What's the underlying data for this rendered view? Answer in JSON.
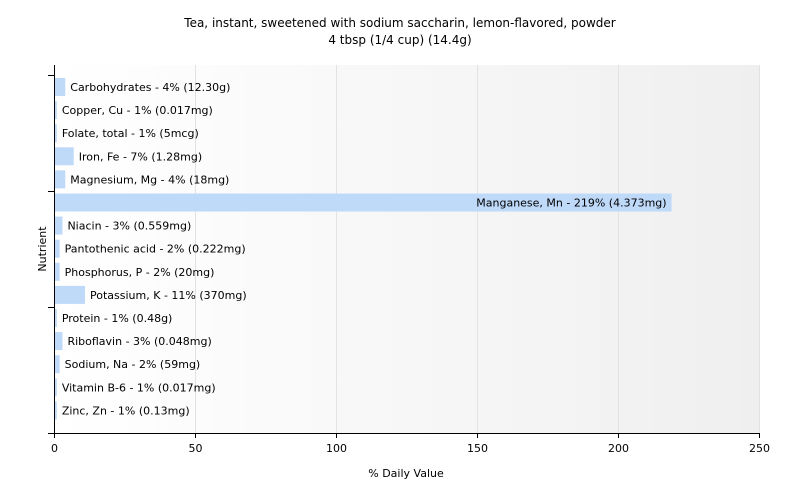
{
  "chart_data": {
    "type": "bar",
    "orientation": "horizontal",
    "title": "Tea, instant, sweetened with sodium saccharin, lemon-flavored, powder",
    "subtitle": "4 tbsp (1/4 cup) (14.4g)",
    "xlabel": "% Daily Value",
    "ylabel": "Nutrient",
    "xlim": [
      0,
      250
    ],
    "xticks": [
      0,
      50,
      100,
      150,
      200,
      250
    ],
    "grid": true,
    "bar_color": "#bfd9f9",
    "categories": [
      "Carbohydrates",
      "Copper, Cu",
      "Folate, total",
      "Iron, Fe",
      "Magnesium, Mg",
      "Manganese, Mn",
      "Niacin",
      "Pantothenic acid",
      "Phosphorus, P",
      "Potassium, K",
      "Protein",
      "Riboflavin",
      "Sodium, Na",
      "Vitamin B-6",
      "Zinc, Zn"
    ],
    "values": [
      4,
      1,
      1,
      7,
      4,
      219,
      3,
      2,
      2,
      11,
      1,
      3,
      2,
      1,
      1
    ],
    "labels": [
      "Carbohydrates - 4% (12.30g)",
      "Copper, Cu - 1% (0.017mg)",
      "Folate, total - 1% (5mcg)",
      "Iron, Fe - 7% (1.28mg)",
      "Magnesium, Mg - 4% (18mg)",
      "Manganese, Mn - 219% (4.373mg)",
      "Niacin - 3% (0.559mg)",
      "Pantothenic acid - 2% (0.222mg)",
      "Phosphorus, P - 2% (20mg)",
      "Potassium, K - 11% (370mg)",
      "Protein - 1% (0.48g)",
      "Riboflavin - 3% (0.048mg)",
      "Sodium, Na - 2% (59mg)",
      "Vitamin B-6 - 1% (0.017mg)",
      "Zinc, Zn - 1% (0.13mg)"
    ]
  }
}
